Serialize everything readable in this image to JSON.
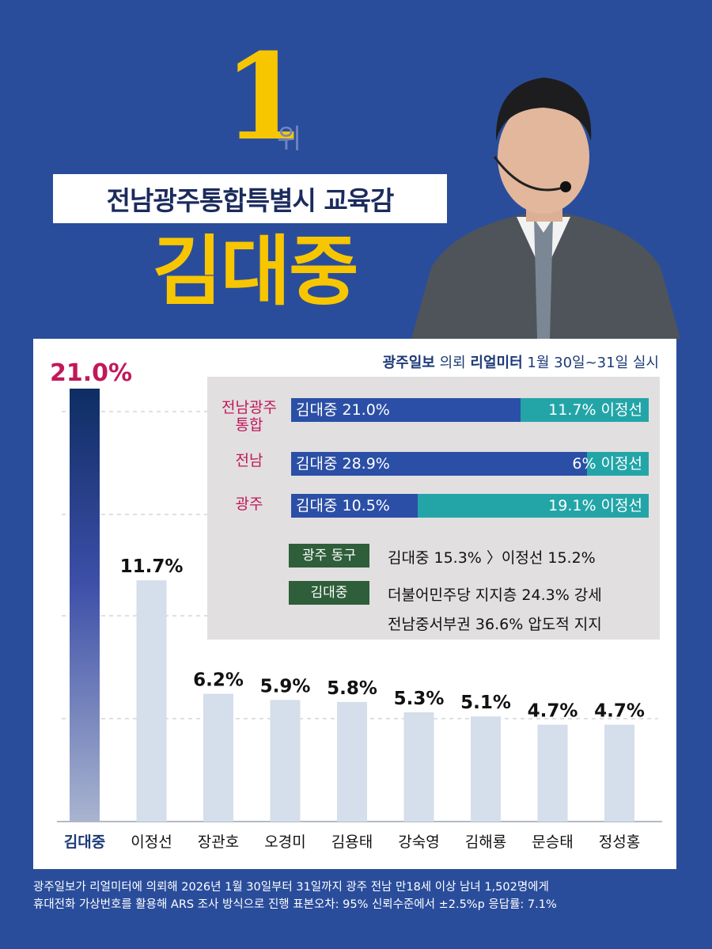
{
  "headline": {
    "rank_number": "1",
    "rank_unit": "위",
    "office": "전남광주통합특별시 교육감",
    "candidate": "김대중"
  },
  "source": {
    "outlet": "광주일보",
    "mid": "의뢰",
    "pollster": "리얼미터",
    "period": "1월 30일~31일 실시"
  },
  "colors": {
    "background": "#2a4d9b",
    "accent_yellow": "#f7c600",
    "leader_label": "#c1185a",
    "left_bar": "#2b4fa6",
    "right_bar": "#23a5a8",
    "tag": "#2e5e3a",
    "other_bars": "#d5deeb"
  },
  "chart_data": {
    "type": "bar",
    "categories": [
      "김대중",
      "이정선",
      "장관호",
      "오경미",
      "김용태",
      "강숙영",
      "김해룡",
      "문승태",
      "정성홍"
    ],
    "values": [
      21.0,
      11.7,
      6.2,
      5.9,
      5.8,
      5.3,
      5.1,
      4.7,
      4.7
    ],
    "value_labels": [
      "21.0%",
      "11.7%",
      "6.2%",
      "5.9%",
      "5.8%",
      "5.3%",
      "5.1%",
      "4.7%",
      "4.7%"
    ],
    "ylim": [
      0,
      21.0
    ],
    "grid": "dashed horizontal"
  },
  "regions": [
    {
      "label": "전남광주\n통합",
      "left_text": "김대중 21.0%",
      "left_value": 21.0,
      "right_text": "11.7% 이정선",
      "right_value": 11.7
    },
    {
      "label": "전남",
      "left_text": "김대중 28.9%",
      "left_value": 28.9,
      "right_text": "6% 이정선",
      "right_value": 6
    },
    {
      "label": "광주",
      "left_text": "김대중 10.5%",
      "left_value": 10.5,
      "right_text": "19.1% 이정선",
      "right_value": 19.1
    }
  ],
  "highlights": {
    "tag1": "광주 동구",
    "line1": "김대중 15.3% 〉이정선 15.2%",
    "tag2": "김대중",
    "line2": "더불어민주당 지지층 24.3% 강세",
    "line3": "전남중서부권 36.6% 압도적 지지"
  },
  "footnote": [
    "광주일보가 리얼미터에 의뢰해 2026년 1월 30일부터 31일까지 광주 전남 만18세 이상 남녀 1,502명에게",
    "휴대전화 가상번호를 활용해 ARS 조사 방식으로 진행 표본오차: 95% 신뢰수준에서 ±2.5%p 응답률: 7.1%"
  ]
}
